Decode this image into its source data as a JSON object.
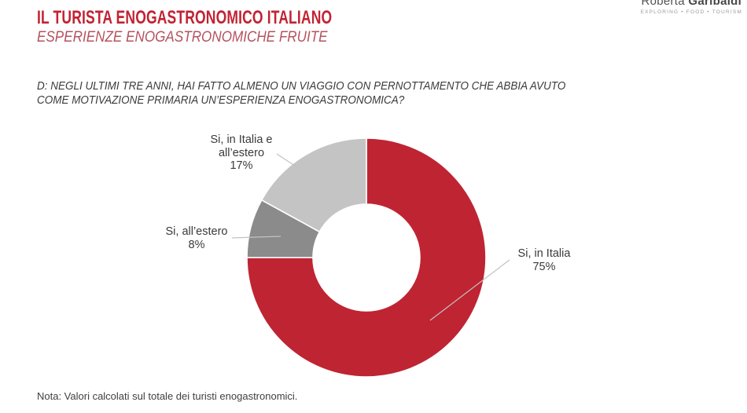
{
  "header": {
    "title": "IL TURISTA ENOGASTRONOMICO ITALIANO",
    "subtitle": "ESPERIENZE ENOGASTRONOMICHE FRUITE"
  },
  "logo": {
    "name_regular": "Roberta",
    "name_bold": "Garibaldi",
    "tagline": "EXPLORING • FOOD • TOURISM"
  },
  "question": {
    "line1": "D: NEGLI ULTIMI TRE ANNI, HAI FATTO ALMENO UN VIAGGIO CON PERNOTTAMENTO CHE ABBIA AVUTO",
    "line2": "COME MOTIVAZIONE PRIMARIA UN’ESPERIENZA ENOGASTRONOMICA?"
  },
  "note": "Nota: Valori calcolati sul totale dei turisti enogastronomici.",
  "colors": {
    "title_red": "#c22233",
    "subtitle_red": "#b5525e",
    "segment_red": "#bf2433",
    "segment_dark_gray": "#8b8b8b",
    "segment_light_gray": "#c5c4c4",
    "divider_white": "#ffffff",
    "leader_line_gray": "#c2c2c2",
    "text_dark": "#3a3a3a"
  },
  "chart_data": {
    "type": "pie",
    "subtype": "donut",
    "title": "",
    "categories": [
      "Si, in Italia",
      "Si, all’estero",
      "Si, in Italia e all’estero"
    ],
    "values": [
      75,
      8,
      17
    ],
    "labels": [
      "75%",
      "8%",
      "17%"
    ],
    "colors": [
      "#bf2433",
      "#8b8b8b",
      "#c5c4c4"
    ],
    "start_angle_deg": 0,
    "direction": "clockwise",
    "donut_hole_ratio": 0.45,
    "legend": "none",
    "data_labels": "outside with leader lines"
  }
}
